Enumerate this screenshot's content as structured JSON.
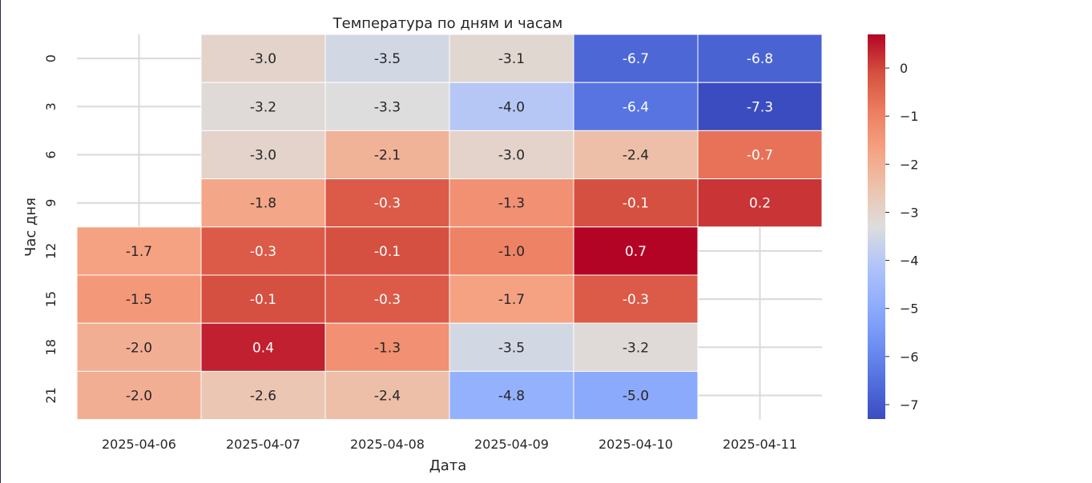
{
  "chart_data": {
    "type": "heatmap",
    "title": "Температура по дням и часам",
    "xlabel": "Дата",
    "ylabel": "Час дня",
    "x_categories": [
      "2025-04-06",
      "2025-04-07",
      "2025-04-08",
      "2025-04-09",
      "2025-04-10",
      "2025-04-11"
    ],
    "y_categories": [
      "0",
      "3",
      "6",
      "9",
      "12",
      "15",
      "18",
      "21"
    ],
    "values": [
      [
        null,
        -3.0,
        -3.5,
        -3.1,
        -6.7,
        -6.8
      ],
      [
        null,
        -3.2,
        -3.3,
        -4.0,
        -6.4,
        -7.3
      ],
      [
        null,
        -3.0,
        -2.1,
        -3.0,
        -2.4,
        -0.7
      ],
      [
        null,
        -1.8,
        -0.3,
        -1.3,
        -0.1,
        0.2
      ],
      [
        -1.7,
        -0.3,
        -0.1,
        -1.0,
        0.7,
        null
      ],
      [
        -1.5,
        -0.1,
        -0.3,
        -1.7,
        -0.3,
        null
      ],
      [
        -2.0,
        0.4,
        -1.3,
        -3.5,
        -3.2,
        null
      ],
      [
        -2.0,
        -2.6,
        -2.4,
        -4.8,
        -5.0,
        null
      ]
    ],
    "colormap": "coolwarm",
    "vmin": -7.3,
    "vmax": 0.7,
    "colorbar_ticks": [
      "0",
      "−1",
      "−2",
      "−3",
      "−4",
      "−5",
      "−6",
      "−7"
    ],
    "grid": true,
    "annotations": true,
    "annotation_format": "one decimal"
  }
}
